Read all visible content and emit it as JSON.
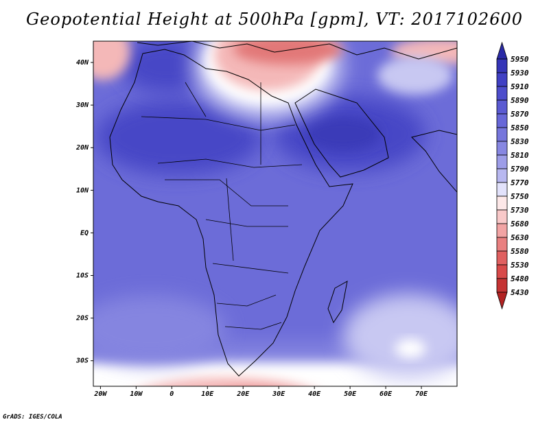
{
  "title": "Geopotential Height at 500hPa [gpm], VT: 2017102600",
  "credit": "GrADS: IGES/COLA",
  "map": {
    "variable": "Geopotential Height at 500hPa",
    "units": "gpm",
    "valid_time": "2017102600",
    "lon_range": [
      -22,
      80
    ],
    "lat_range": [
      -36,
      45
    ],
    "lon_ticks": [
      {
        "value": -20,
        "label": "20W"
      },
      {
        "value": -10,
        "label": "10W"
      },
      {
        "value": 0,
        "label": "0"
      },
      {
        "value": 10,
        "label": "10E"
      },
      {
        "value": 20,
        "label": "20E"
      },
      {
        "value": 30,
        "label": "30E"
      },
      {
        "value": 40,
        "label": "40E"
      },
      {
        "value": 50,
        "label": "50E"
      },
      {
        "value": 60,
        "label": "60E"
      },
      {
        "value": 70,
        "label": "70E"
      }
    ],
    "lat_ticks": [
      {
        "value": 40,
        "label": "40N"
      },
      {
        "value": 30,
        "label": "30N"
      },
      {
        "value": 20,
        "label": "20N"
      },
      {
        "value": 10,
        "label": "10N"
      },
      {
        "value": 0,
        "label": "EQ"
      },
      {
        "value": -10,
        "label": "10S"
      },
      {
        "value": -20,
        "label": "20S"
      },
      {
        "value": -30,
        "label": "30S"
      }
    ]
  },
  "colorbar": {
    "labels": [
      "5950",
      "5930",
      "5910",
      "5890",
      "5870",
      "5850",
      "5830",
      "5810",
      "5790",
      "5770",
      "5750",
      "5730",
      "5680",
      "5630",
      "5580",
      "5530",
      "5480",
      "5430"
    ],
    "colors": [
      "#2a2aa6",
      "#3535b8",
      "#4040c4",
      "#4d4dcc",
      "#5a5ad2",
      "#6767d8",
      "#7676dc",
      "#8787e2",
      "#9d9de8",
      "#b8b8f0",
      "#e2e2fb",
      "#fde8e8",
      "#f9c9c9",
      "#f2a4a4",
      "#e98080",
      "#e06060",
      "#d84a4a",
      "#c53434",
      "#b22222"
    ]
  },
  "field_colors": {
    "high_core": "#3a3ab8",
    "high": "#4747c6",
    "mid": "#6c6cd8",
    "low_mid": "#8585e0",
    "pale": "#c8c8f2",
    "white": "#ffffff",
    "pink": "#f4b8b8",
    "red": "#e27878",
    "dark_red": "#d35a5a"
  }
}
